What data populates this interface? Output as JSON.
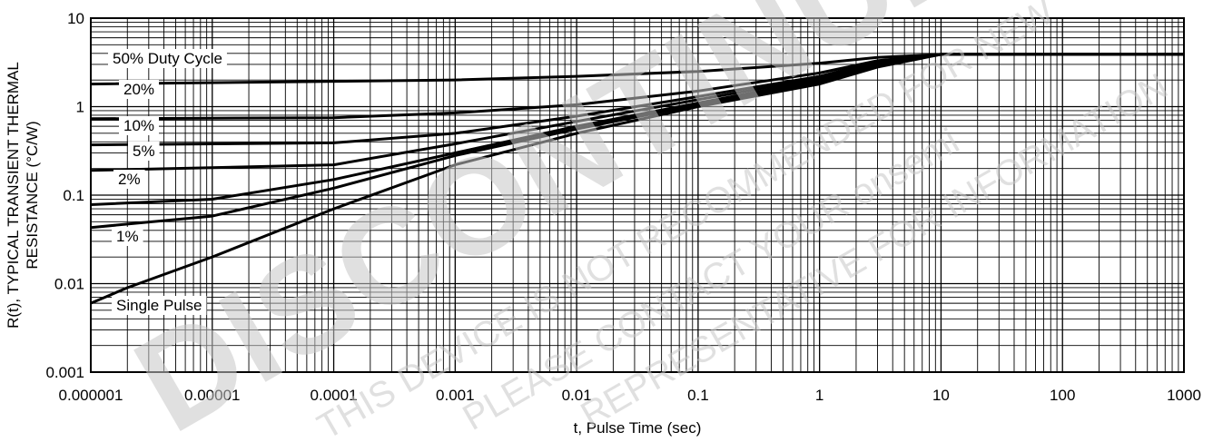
{
  "chart_data": {
    "type": "line",
    "xlabel": "t, Pulse Time (sec)",
    "ylabel_line1": "R(t), TYPICAL TRANSIENT THERMAL",
    "ylabel_line2": "RESISTANCE (°C/W)",
    "x_scale": "log",
    "y_scale": "log",
    "xlim": [
      1e-06,
      1000
    ],
    "ylim": [
      0.001,
      10
    ],
    "grid": true,
    "x_ticks": [
      "0.000001",
      "0.00001",
      "0.0001",
      "0.001",
      "0.01",
      "0.1",
      "1",
      "10",
      "100",
      "1000"
    ],
    "y_ticks": [
      "0.001",
      "0.01",
      "0.1",
      "1",
      "10"
    ],
    "series": [
      {
        "name": "50% Duty Cycle",
        "x": [
          1e-06,
          0.001,
          0.01,
          0.1,
          1,
          3,
          10,
          20,
          1000
        ],
        "y": [
          1.8,
          2.0,
          2.2,
          2.5,
          3.1,
          3.6,
          3.9,
          3.9,
          3.9
        ]
      },
      {
        "name": "20%",
        "x": [
          1e-06,
          0.0001,
          0.001,
          0.01,
          0.1,
          1,
          3,
          10,
          20
        ],
        "y": [
          0.73,
          0.75,
          0.85,
          1.05,
          1.5,
          2.4,
          3.3,
          3.9,
          3.9
        ]
      },
      {
        "name": "10%",
        "x": [
          1e-06,
          0.0001,
          0.001,
          0.01,
          0.1,
          1,
          3,
          10,
          20
        ],
        "y": [
          0.37,
          0.39,
          0.5,
          0.78,
          1.3,
          2.2,
          3.2,
          3.9,
          3.9
        ]
      },
      {
        "name": "5%",
        "x": [
          1e-06,
          0.0001,
          0.001,
          0.01,
          0.1,
          1,
          3,
          10,
          20
        ],
        "y": [
          0.19,
          0.22,
          0.38,
          0.68,
          1.2,
          2.1,
          3.1,
          3.9,
          3.9
        ]
      },
      {
        "name": "2%",
        "x": [
          1e-06,
          1e-05,
          0.0001,
          0.001,
          0.01,
          0.1,
          1,
          3,
          10,
          20
        ],
        "y": [
          0.078,
          0.09,
          0.15,
          0.3,
          0.6,
          1.1,
          2.0,
          3.0,
          3.9,
          3.9
        ]
      },
      {
        "name": "1%",
        "x": [
          1e-06,
          1e-05,
          0.0001,
          0.001,
          0.01,
          0.1,
          1,
          3,
          10,
          20
        ],
        "y": [
          0.043,
          0.058,
          0.12,
          0.28,
          0.56,
          1.05,
          1.9,
          2.9,
          3.9,
          3.9
        ]
      },
      {
        "name": "Single Pulse",
        "x": [
          1e-06,
          2e-06,
          1e-05,
          0.0001,
          0.001,
          0.01,
          0.1,
          1,
          3,
          10,
          20
        ],
        "y": [
          0.006,
          0.009,
          0.02,
          0.07,
          0.22,
          0.5,
          1.0,
          1.8,
          2.8,
          3.9,
          3.9
        ]
      }
    ]
  },
  "watermark": {
    "line1": "DISCONTINUED",
    "line2": "THIS DEVICE IS NOT RECOMMENDED FOR NEW",
    "line3": "PLEASE CONTACT YOUR onsemi",
    "line4": "REPRESENTATIVE FOR INFORMATION"
  }
}
